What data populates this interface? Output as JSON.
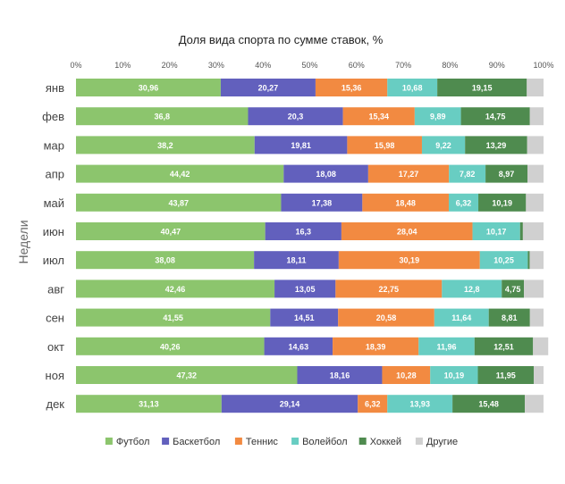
{
  "chart_data": {
    "type": "bar",
    "orientation": "horizontal",
    "stacked": true,
    "title": "Доля вида спорта по сумме ставок, %",
    "xlabel": "",
    "ylabel": "Недели",
    "xlim": [
      0,
      100
    ],
    "x_ticks": [
      "0%",
      "10%",
      "20%",
      "30%",
      "40%",
      "50%",
      "60%",
      "70%",
      "80%",
      "90%",
      "100%"
    ],
    "grid": false,
    "legend_position": "bottom",
    "categories": [
      "янв",
      "фев",
      "мар",
      "апр",
      "май",
      "июн",
      "июл",
      "авг",
      "сен",
      "окт",
      "ноя",
      "дек"
    ],
    "series": [
      {
        "name": "Футбол",
        "color": "#8cc56d",
        "values": [
          30.96,
          36.8,
          38.2,
          44.42,
          43.87,
          40.47,
          38.08,
          42.46,
          41.55,
          40.26,
          47.32,
          31.13
        ],
        "labels": [
          "30,96",
          "36,8",
          "38,2",
          "44,42",
          "43,87",
          "40,47",
          "38,08",
          "42,46",
          "41,55",
          "40,26",
          "47,32",
          "31,13"
        ]
      },
      {
        "name": "Баскетбол",
        "color": "#6260bd",
        "values": [
          20.27,
          20.3,
          19.81,
          18.08,
          17.38,
          16.3,
          18.11,
          13.05,
          14.51,
          14.63,
          18.16,
          29.14
        ],
        "labels": [
          "20,27",
          "20,3",
          "19,81",
          "18,08",
          "17,38",
          "16,3",
          "18,11",
          "13,05",
          "14,51",
          "14,63",
          "18,16",
          "29,14"
        ]
      },
      {
        "name": "Теннис",
        "color": "#f28a41",
        "values": [
          15.36,
          15.34,
          15.98,
          17.27,
          18.48,
          28.04,
          30.19,
          22.75,
          20.58,
          18.39,
          10.28,
          6.32
        ],
        "labels": [
          "15,36",
          "15,34",
          "15,98",
          "17,27",
          "18,48",
          "28,04",
          "30,19",
          "22,75",
          "20,58",
          "18,39",
          "10,28",
          "6,32"
        ]
      },
      {
        "name": "Волейбол",
        "color": "#68cdc2",
        "values": [
          10.68,
          9.89,
          9.22,
          7.82,
          6.32,
          10.17,
          10.25,
          12.8,
          11.64,
          11.96,
          10.19,
          13.93
        ],
        "labels": [
          "10,68",
          "9,89",
          "9,22",
          "7,82",
          "6,32",
          "10,17",
          "10,25",
          "12,8",
          "11,64",
          "11,96",
          "10,19",
          "13,93"
        ]
      },
      {
        "name": "Хоккей",
        "color": "#4f8b4f",
        "values": [
          19.15,
          14.75,
          13.29,
          8.97,
          10.19,
          0.6,
          0.4,
          4.75,
          8.81,
          12.51,
          11.95,
          15.48
        ],
        "labels": [
          "19,15",
          "14,75",
          "13,29",
          "8,97",
          "10,19",
          "",
          "",
          "4,75",
          "8,81",
          "12,51",
          "11,95",
          "15,48"
        ]
      },
      {
        "name": "Другие",
        "color": "#d0d0d0",
        "values": [
          3.58,
          2.92,
          3.5,
          3.44,
          3.76,
          4.42,
          2.97,
          4.19,
          2.91,
          3.25,
          2.1,
          3.99
        ],
        "labels": [
          "",
          "",
          "",
          "",
          "",
          "",
          "",
          "",
          "",
          "",
          "",
          ""
        ]
      }
    ]
  }
}
